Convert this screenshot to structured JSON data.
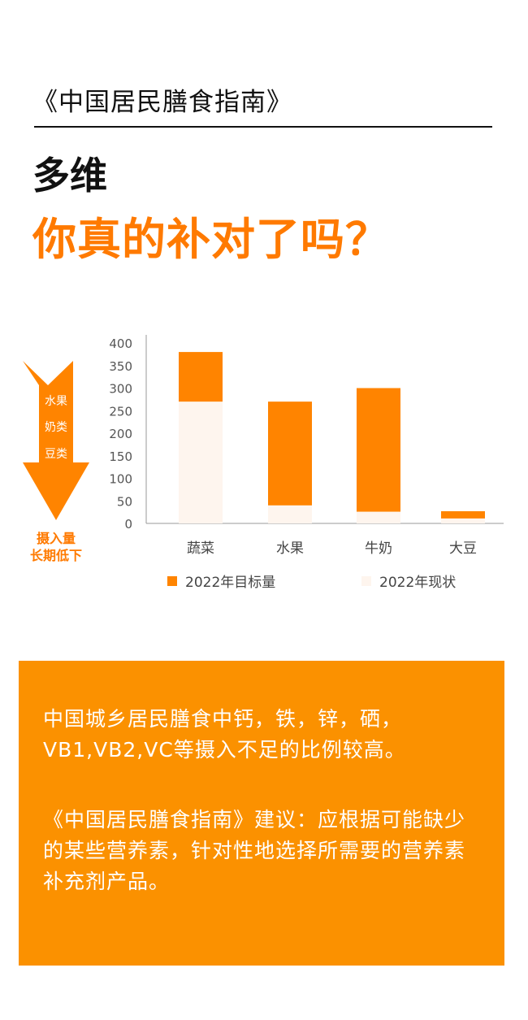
{
  "header": {
    "book_title": "《中国居民膳食指南》",
    "headline1": "多维",
    "headline2": "你真的补对了吗？"
  },
  "arrow": {
    "items": [
      "水果",
      "奶类",
      "豆类"
    ],
    "caption_lines": [
      "摄入量",
      "长期低下"
    ]
  },
  "colors": {
    "accent": "#FF8400",
    "current": "#FEF5EE",
    "box": "#FB9100"
  },
  "chart_data": {
    "type": "bar",
    "stacked": true,
    "categories": [
      "蔬菜",
      "水果",
      "牛奶",
      "大豆"
    ],
    "series": [
      {
        "name": "2022年现状",
        "values": [
          270,
          40,
          26,
          11
        ],
        "color": "#FEF5EE"
      },
      {
        "name": "2022年目标量",
        "values": [
          110,
          230,
          274,
          16
        ],
        "color": "#FF8400"
      }
    ],
    "legend_order": [
      "2022年目标量",
      "2022年现状"
    ],
    "yticks": [
      0,
      50,
      100,
      150,
      200,
      250,
      300,
      350,
      400
    ],
    "ylim": [
      0,
      400
    ],
    "grid": false,
    "legend_placement": "bottom"
  },
  "box": {
    "para1": "中国城乡居民膳食中钙，铁，锌，硒，VB1,VB2,VC等摄入不足的比例较高。",
    "para2": "《中国居民膳食指南》建议：应根据可能缺少的某些营养素，针对性地选择所需要的营养素补充剂产品。"
  }
}
